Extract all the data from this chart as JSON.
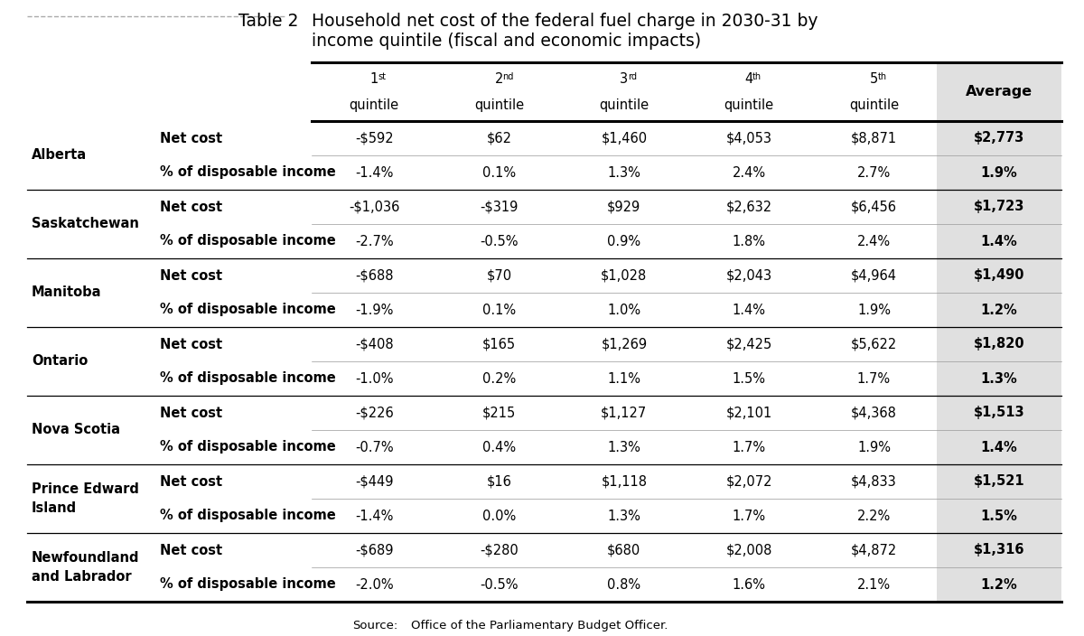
{
  "title_label": "Table 2",
  "title_main_line1": "Household net cost of the federal fuel charge in 2030-31 by",
  "title_main_line2": "income quintile (fiscal and economic impacts)",
  "rows": [
    {
      "province_line1": "Alberta",
      "province_line2": "",
      "net_cost": [
        "-$592",
        "$62",
        "$1,460",
        "$4,053",
        "$8,871",
        "$2,773"
      ],
      "pct_income": [
        "-1.4%",
        "0.1%",
        "1.3%",
        "2.4%",
        "2.7%",
        "1.9%"
      ]
    },
    {
      "province_line1": "Saskatchewan",
      "province_line2": "",
      "net_cost": [
        "-$1,036",
        "-$319",
        "$929",
        "$2,632",
        "$6,456",
        "$1,723"
      ],
      "pct_income": [
        "-2.7%",
        "-0.5%",
        "0.9%",
        "1.8%",
        "2.4%",
        "1.4%"
      ]
    },
    {
      "province_line1": "Manitoba",
      "province_line2": "",
      "net_cost": [
        "-$688",
        "$70",
        "$1,028",
        "$2,043",
        "$4,964",
        "$1,490"
      ],
      "pct_income": [
        "-1.9%",
        "0.1%",
        "1.0%",
        "1.4%",
        "1.9%",
        "1.2%"
      ]
    },
    {
      "province_line1": "Ontario",
      "province_line2": "",
      "net_cost": [
        "-$408",
        "$165",
        "$1,269",
        "$2,425",
        "$5,622",
        "$1,820"
      ],
      "pct_income": [
        "-1.0%",
        "0.2%",
        "1.1%",
        "1.5%",
        "1.7%",
        "1.3%"
      ]
    },
    {
      "province_line1": "Nova Scotia",
      "province_line2": "",
      "net_cost": [
        "-$226",
        "$215",
        "$1,127",
        "$2,101",
        "$4,368",
        "$1,513"
      ],
      "pct_income": [
        "-0.7%",
        "0.4%",
        "1.3%",
        "1.7%",
        "1.9%",
        "1.4%"
      ]
    },
    {
      "province_line1": "Prince Edward",
      "province_line2": "Island",
      "net_cost": [
        "-$449",
        "$16",
        "$1,118",
        "$2,072",
        "$4,833",
        "$1,521"
      ],
      "pct_income": [
        "-1.4%",
        "0.0%",
        "1.3%",
        "1.7%",
        "2.2%",
        "1.5%"
      ]
    },
    {
      "province_line1": "Newfoundland",
      "province_line2": "and Labrador",
      "net_cost": [
        "-$689",
        "-$280",
        "$680",
        "$2,008",
        "$4,872",
        "$1,316"
      ],
      "pct_income": [
        "-2.0%",
        "-0.5%",
        "0.8%",
        "1.6%",
        "2.1%",
        "1.2%"
      ]
    }
  ],
  "bg_color": "#ffffff",
  "avg_col_bg": "#e0e0e0",
  "text_color": "#000000",
  "col_header_nums": [
    "1",
    "2",
    "3",
    "4",
    "5"
  ],
  "col_header_sups": [
    "st",
    "nd",
    "rd",
    "th",
    "th"
  ],
  "col_header_word": "quintile",
  "avg_header": "Average",
  "row_label_1": "Net cost",
  "row_label_2": "% of disposable income",
  "source_label": "Source:",
  "source_text": "Office of the Parliamentary Budget Officer.",
  "title_font_size": 13.5,
  "label_font_size": 12,
  "cell_font_size": 10.5,
  "header_font_size": 10.5,
  "source_font_size": 9.5
}
